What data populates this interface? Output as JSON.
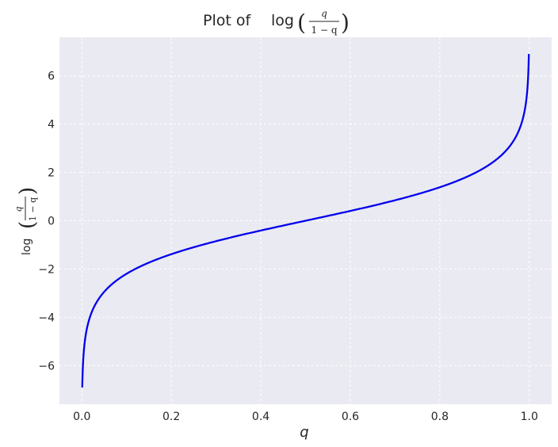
{
  "chart_data": {
    "type": "line",
    "title_prefix": "Plot of",
    "function_text": "log",
    "fraction_numerator": "q",
    "fraction_denominator": "1 − q",
    "xlabel": "q",
    "ylabel_function": "log",
    "x_ticks": [
      "0.0",
      "0.2",
      "0.4",
      "0.6",
      "0.8",
      "1.0"
    ],
    "y_ticks": [
      "−6",
      "−4",
      "−2",
      "0",
      "2",
      "4",
      "6"
    ],
    "xlim": [
      -0.05,
      1.05
    ],
    "ylim": [
      -7.6,
      7.6
    ],
    "grid": true,
    "colors": {
      "line": "#0000ee",
      "background": "#eaeaf2",
      "grid": "#ffffff"
    },
    "series": [
      {
        "function": "log(q/(1-q))",
        "x_range": [
          0.001,
          0.999
        ],
        "y_range": [
          -6.907,
          6.907
        ]
      }
    ]
  }
}
